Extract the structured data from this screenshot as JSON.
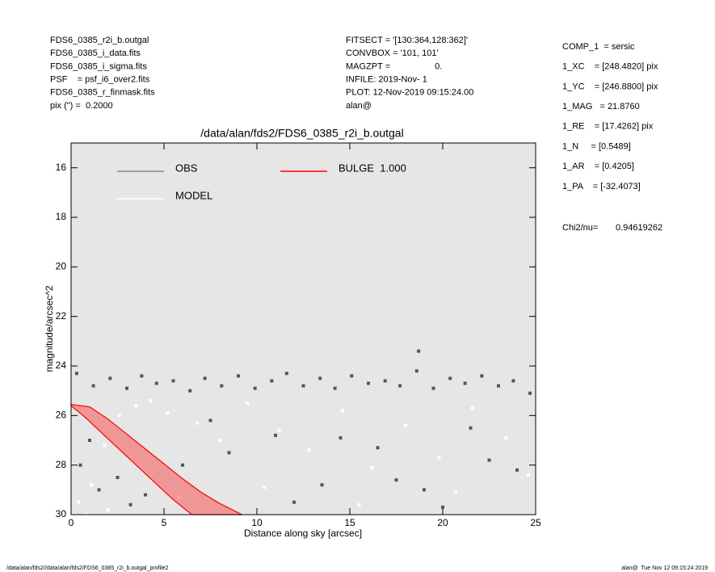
{
  "header_left": [
    "FDS6_0385_r2i_b.outgal",
    "FDS6_0385_i_data.fits",
    "FDS6_0385_i_sigma.fits",
    "PSF    = psf_i6_over2.fits",
    "FDS6_0385_r_finmask.fits",
    "pix (\") =  0.2000"
  ],
  "header_middle": [
    "FITSECT = '[130:364,128:362]'",
    "CONVBOX = '101, 101'",
    "MAGZPT =                  0.",
    "INFILE: 2019-Nov- 1",
    "PLOT: 12-Nov-2019 09:15:24.00",
    "alan@"
  ],
  "params": [
    "COMP_1  = sersic",
    "1_XC    = [248.4820] pix",
    "1_YC    = [246.8800] pix",
    "1_MAG   = 21.8760",
    "1_RE    = [17.4262] pix",
    "1_N     = [0.5489]",
    "1_AR    = [0.4205]",
    "1_PA    = [-32.4073]"
  ],
  "chi2": {
    "label": "Chi2/nu=",
    "value": "0.94619262"
  },
  "footer_left": "/data/alan/fds2//data/alan/fds2/FDS6_0385_r2i_b.outgal_profile2",
  "footer_right": "alan@  Tue Nov 12 09:15:24 2019",
  "chart_data": {
    "type": "scatter",
    "title": "/data/alan/fds2/FDS6_0385_r2i_b.outgal",
    "xlabel": "Distance along sky [arcsec]",
    "ylabel": "magnitude/arcsec^2",
    "xlim": [
      0,
      25
    ],
    "ylim": [
      30,
      15
    ],
    "xticks": [
      0,
      5,
      10,
      15,
      20,
      25
    ],
    "yticks": [
      16,
      18,
      20,
      22,
      24,
      26,
      28,
      30
    ],
    "background": "#e6e6e6",
    "series": [
      {
        "name": "OBS",
        "color": "#555555",
        "x": [
          0.3,
          1.2,
          2.1,
          3.0,
          3.8,
          4.6,
          5.5,
          6.4,
          7.2,
          8.1,
          9.0,
          9.9,
          10.8,
          11.6,
          12.5,
          13.4,
          14.2,
          15.1,
          16.0,
          16.9,
          17.7,
          18.6,
          18.7,
          19.5,
          20.4,
          21.2,
          22.1,
          23.0,
          23.8,
          24.7,
          1.0,
          2.5,
          4.0,
          6.0,
          8.5,
          11.0,
          13.5,
          16.5,
          19.0,
          21.5,
          24.0,
          3.2,
          7.5,
          12.0,
          17.5,
          22.5,
          0.5,
          1.5,
          14.5,
          20.0
        ],
        "values": [
          24.3,
          24.8,
          24.5,
          24.9,
          24.4,
          24.7,
          24.6,
          25.0,
          24.5,
          24.8,
          24.4,
          24.9,
          24.6,
          24.3,
          24.8,
          24.5,
          24.9,
          24.4,
          24.7,
          24.6,
          24.8,
          24.2,
          23.4,
          24.9,
          24.5,
          24.7,
          24.4,
          24.8,
          24.6,
          25.1,
          27.0,
          28.5,
          29.2,
          28.0,
          27.5,
          26.8,
          28.8,
          27.3,
          29.0,
          26.5,
          28.2,
          29.6,
          26.2,
          29.5,
          28.6,
          27.8,
          28.0,
          29.0,
          26.9,
          29.7
        ]
      },
      {
        "name": "MODEL",
        "color": "#ffffff",
        "x": [
          0.4,
          1.1,
          1.8,
          2.6,
          3.5,
          4.3,
          5.2,
          6.8,
          8.0,
          9.5,
          11.2,
          12.8,
          14.6,
          16.2,
          18.0,
          19.8,
          21.6,
          23.4,
          24.6,
          2.0,
          5.8,
          10.4,
          15.5,
          20.7,
          0.8
        ],
        "values": [
          29.5,
          28.8,
          27.2,
          26.0,
          25.6,
          25.4,
          25.9,
          26.3,
          27.0,
          25.5,
          26.6,
          27.4,
          25.8,
          28.1,
          26.4,
          27.7,
          25.7,
          26.9,
          28.4,
          29.8,
          29.3,
          28.9,
          29.6,
          29.1,
          30.0
        ]
      },
      {
        "name": "BULGE  1.000",
        "color": "#ff0000",
        "x": [
          0.0,
          1.0,
          2.0,
          3.0,
          4.0,
          5.0,
          6.0,
          7.0,
          8.0,
          9.2,
          6.5,
          5.5,
          4.5,
          3.5,
          2.5,
          1.5,
          0.8,
          0.0
        ],
        "values": [
          25.55,
          25.65,
          26.15,
          26.75,
          27.35,
          27.95,
          28.55,
          29.1,
          29.55,
          30.0,
          30.0,
          29.4,
          28.7,
          28.0,
          27.3,
          26.6,
          26.1,
          25.6
        ]
      }
    ]
  }
}
